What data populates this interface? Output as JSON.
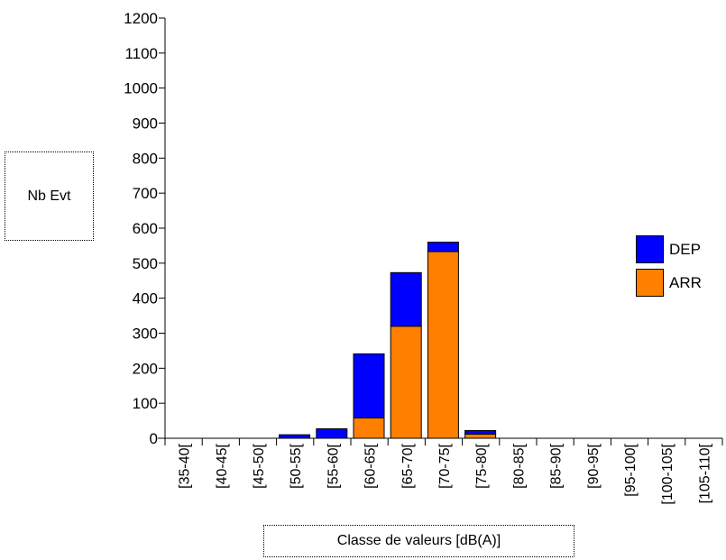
{
  "chart_data": {
    "type": "bar",
    "stacked": true,
    "categories": [
      "[35-40[",
      "[40-45[",
      "[45-50[",
      "[50-55[",
      "[55-60[",
      "[60-65[",
      "[65-70[",
      "[70-75[",
      "[75-80[",
      "[80-85[",
      "[85-90[",
      "[90-95[",
      "[95-100[",
      "[100-105[",
      "[105-110["
    ],
    "series": [
      {
        "name": "ARR",
        "color": "#ff8000",
        "values": [
          0,
          0,
          0,
          0,
          0,
          58,
          320,
          533,
          12,
          0,
          0,
          0,
          0,
          0,
          0
        ]
      },
      {
        "name": "DEP",
        "color": "#0000ff",
        "values": [
          0,
          0,
          0,
          10,
          27,
          183,
          153,
          27,
          10,
          0,
          0,
          0,
          0,
          0,
          0
        ]
      }
    ],
    "ylim": [
      0,
      1200
    ],
    "yticks": [
      0,
      100,
      200,
      300,
      400,
      500,
      600,
      700,
      800,
      900,
      1000,
      1100,
      1200
    ],
    "ylabel": "Nb Evt",
    "xlabel": "Classe de valeurs [dB(A)]",
    "legend": {
      "placement": "right",
      "entries": [
        "DEP",
        "ARR"
      ]
    },
    "grid": false
  }
}
